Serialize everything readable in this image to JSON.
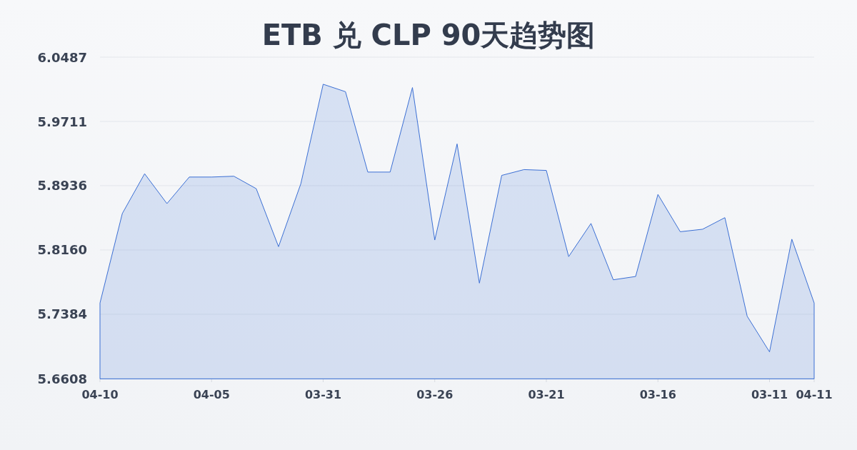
{
  "chart_data": {
    "type": "area",
    "title": "ETB 兑 CLP 90天趋势图",
    "categories": [
      "04-10",
      null,
      null,
      null,
      null,
      "04-05",
      null,
      null,
      null,
      null,
      "03-31",
      null,
      null,
      null,
      null,
      "03-26",
      null,
      null,
      null,
      null,
      "03-21",
      null,
      null,
      null,
      null,
      "03-16",
      null,
      null,
      null,
      null,
      "03-11",
      null,
      "04-11"
    ],
    "series": [
      {
        "color": "#3b6fd4",
        "values": [
          5.752,
          5.86,
          5.908,
          5.872,
          5.904,
          5.904,
          5.905,
          5.89,
          5.82,
          5.896,
          6.016,
          6.007,
          5.91,
          5.91,
          6.012,
          5.828,
          5.944,
          5.776,
          5.906,
          5.913,
          5.912,
          5.808,
          5.848,
          5.78,
          5.784,
          5.883,
          5.838,
          5.841,
          5.855,
          5.736,
          5.693,
          5.829,
          5.752
        ]
      }
    ],
    "ylim": [
      5.6608,
      6.0487
    ],
    "yticks": [
      5.6608,
      5.7384,
      {
        "value": 5.816,
        "label": "5.8160"
      },
      5.8936,
      5.9711,
      6.0487
    ],
    "grid": "y"
  }
}
